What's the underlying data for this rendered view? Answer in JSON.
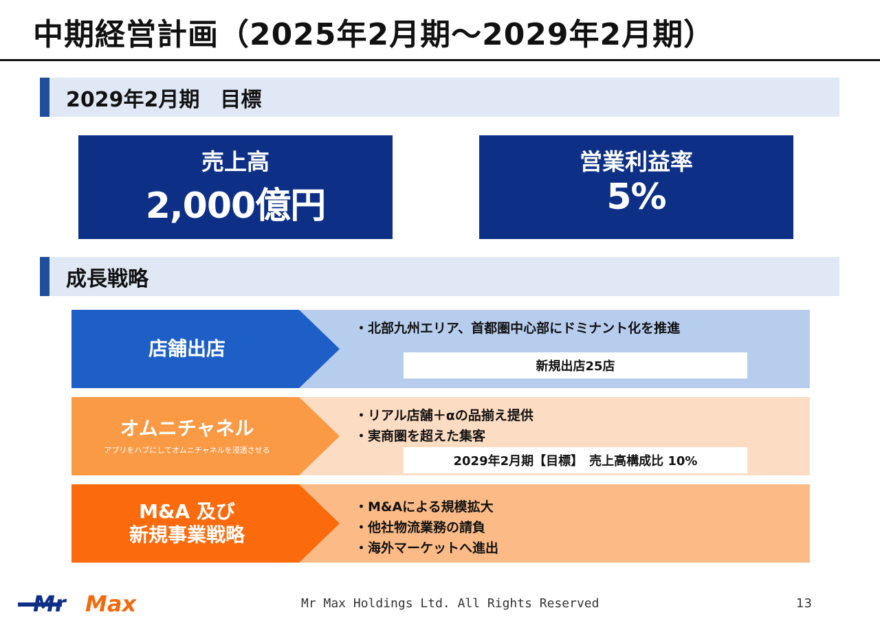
{
  "title": "中期経営計画（2025年2月期～2029年2月期）",
  "section_goal": {
    "label": "2029年2月期　目標"
  },
  "kpis": [
    {
      "label": "売上高",
      "value": "2,000億円"
    },
    {
      "label": "営業利益率",
      "value": "5%"
    }
  ],
  "section_strategy": {
    "label": "成長戦略"
  },
  "strategies": [
    {
      "label": "店舗出店",
      "bullets": [
        "・北部九州エリア、首都圏中心部にドミナント化を推進"
      ],
      "target": "新規出店25店"
    },
    {
      "label": "オムニチャネル",
      "sublabel": "アプリをハブにしてオムニチャネルを浸透させる",
      "bullets": [
        "・リアル店舗＋αの品揃え提供",
        "・実商圏を超えた集客"
      ],
      "target": "2029年2月期【目標】　売上高構成比 10%"
    },
    {
      "label_line1": "M&A 及び",
      "label_line2": "新規事業戦略",
      "bullets": [
        "・M&Aによる規模拡大",
        "・他社物流業務の請負",
        "・海外マーケットへ進出"
      ]
    }
  ],
  "footer": {
    "logo_text": "MrMax",
    "copyright": "Mr Max Holdings Ltd. All Rights Reserved",
    "page_number": "13"
  },
  "colors": {
    "navy": "#0d2f86",
    "blue": "#1d5fc6",
    "light_blue": "#b7cdee",
    "orange": "#fb9a45",
    "deep_orange": "#fb6b0d"
  }
}
